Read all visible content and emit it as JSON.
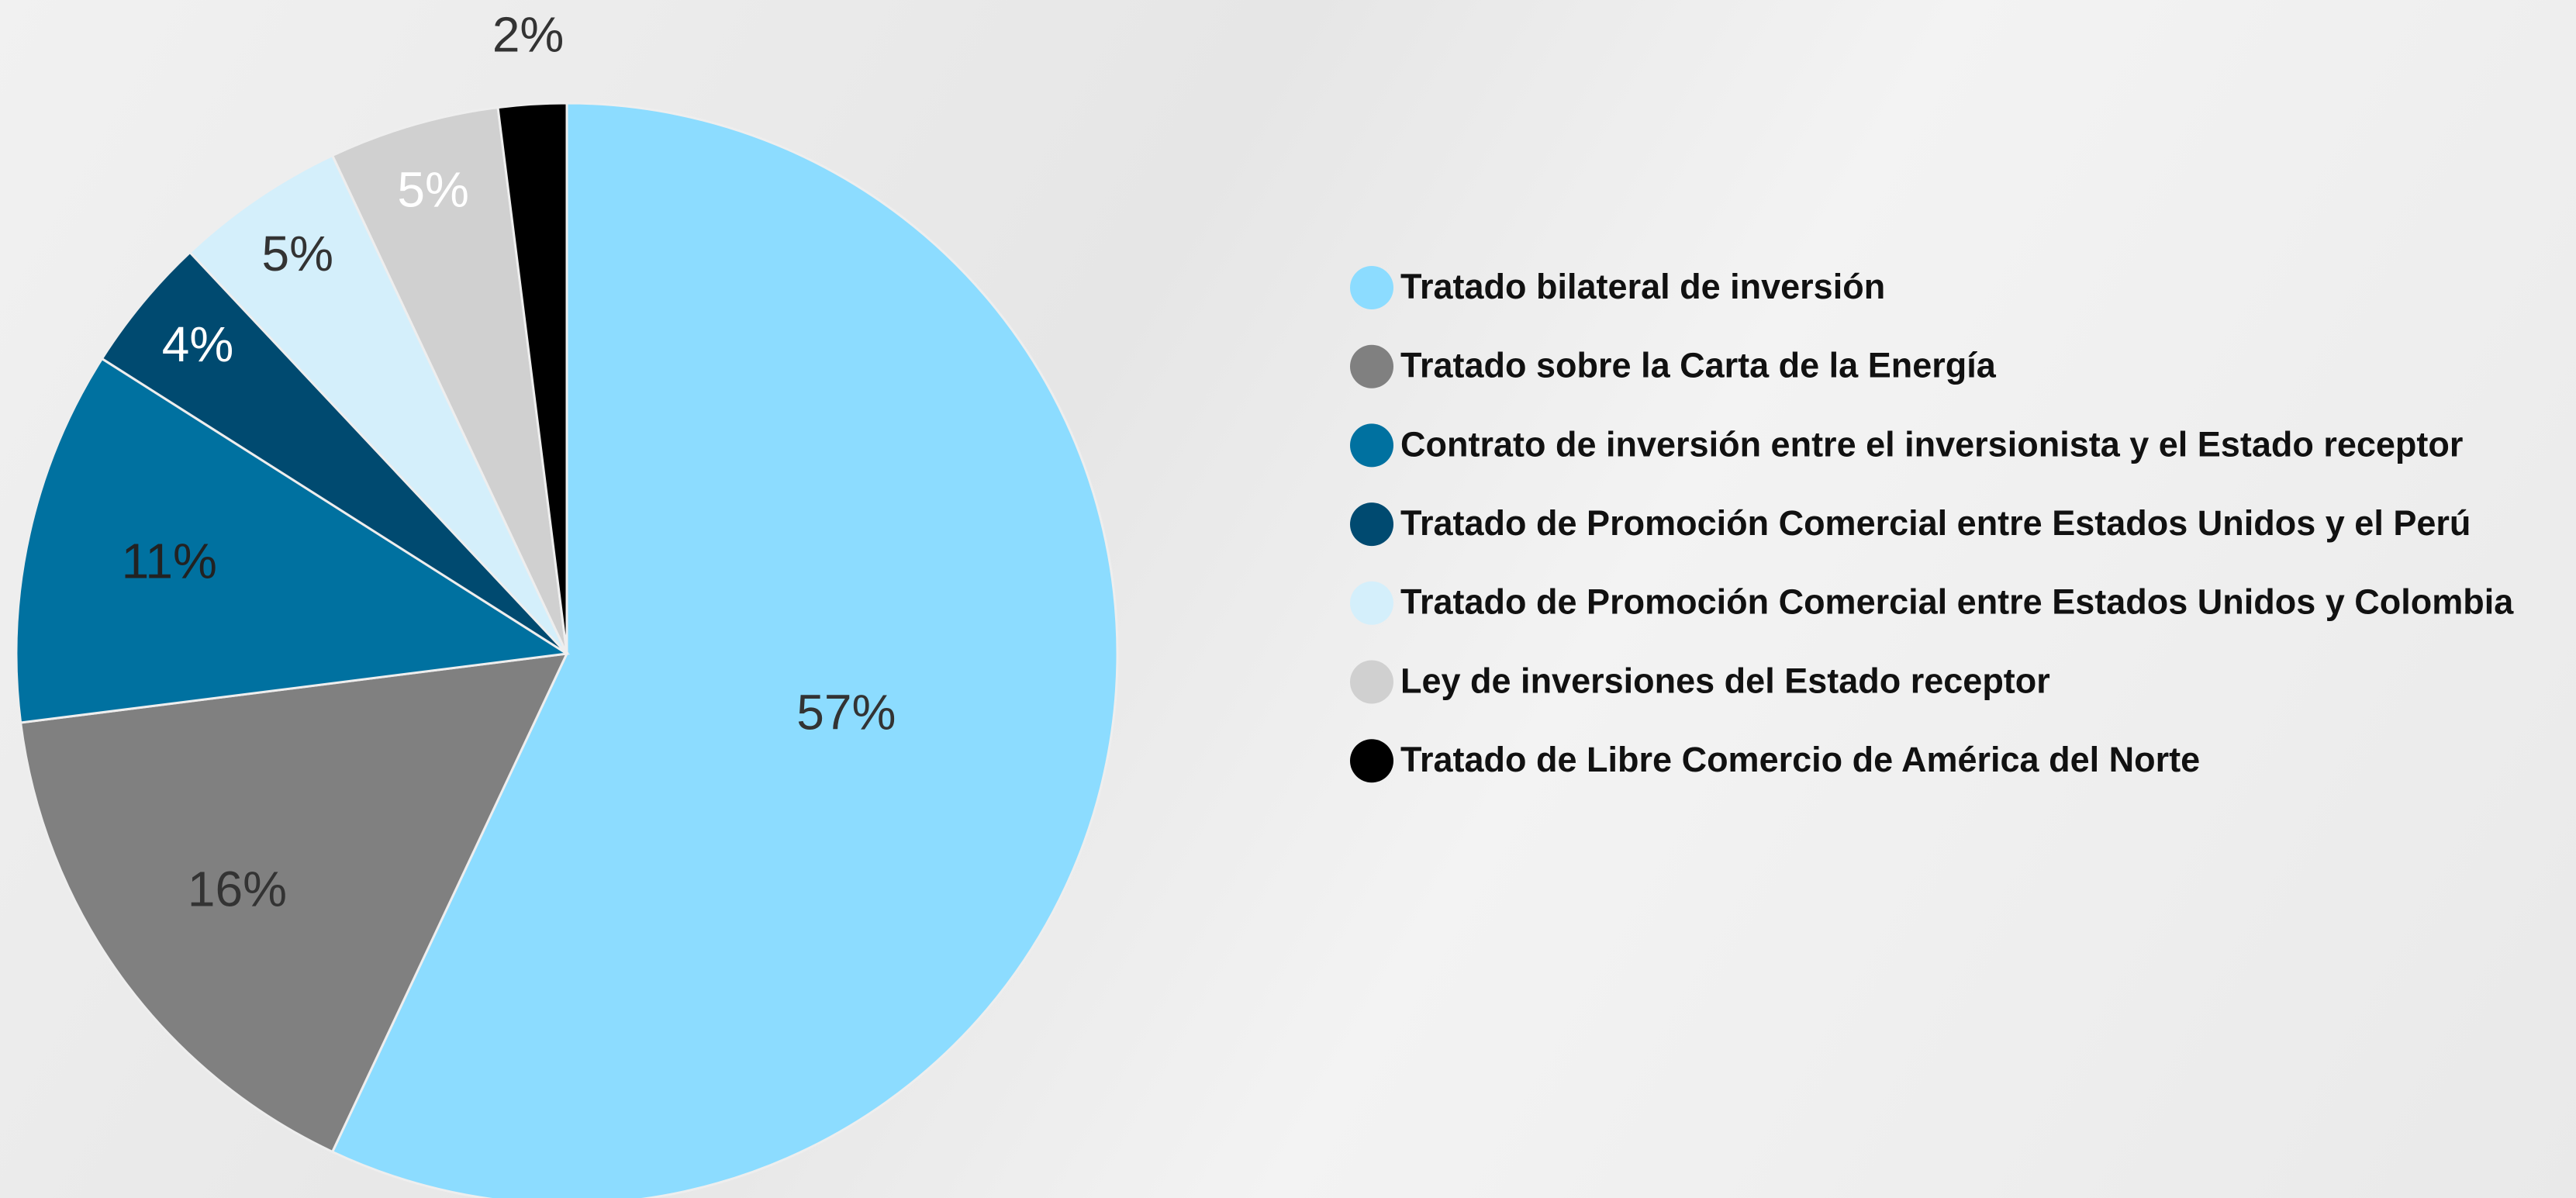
{
  "chart_data": {
    "type": "pie",
    "categories": [
      "Tratado bilateral de inversión",
      "Tratado sobre la Carta de la Energía",
      "Contrato de inversión entre el inversionista y el Estado receptor",
      "Tratado de Promoción Comercial entre Estados Unidos y el Perú",
      "Tratado de Promoción Comercial entre Estados Unidos y Colombia",
      "Ley de inversiones del Estado receptor",
      "Tratado de Libre Comercio de América del Norte"
    ],
    "values": [
      57,
      16,
      11,
      4,
      5,
      5,
      2
    ],
    "value_labels": [
      "57%",
      "16%",
      "11%",
      "4%",
      "5%",
      "5%",
      "2%"
    ],
    "colors": [
      "#8cdcff",
      "#808080",
      "#0071a0",
      "#004a70",
      "#d4effb",
      "#d0d0d0",
      "#000000"
    ],
    "label_colors": [
      "#333333",
      "#333333",
      "#222222",
      "#ffffff",
      "#333333",
      "#ffffff",
      "#333333"
    ],
    "legend": "right"
  }
}
